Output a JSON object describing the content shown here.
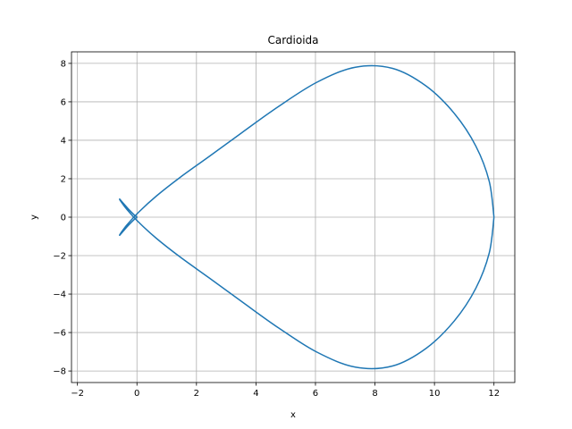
{
  "chart_data": {
    "type": "line",
    "title": "Cardioida",
    "xlabel": "x",
    "ylabel": "y",
    "xlim": [
      -2.2,
      12.7
    ],
    "ylim": [
      -8.6,
      8.6
    ],
    "x_ticks": [
      -2,
      0,
      2,
      4,
      6,
      8,
      10,
      12
    ],
    "y_ticks": [
      -8,
      -6,
      -4,
      -2,
      0,
      2,
      4,
      6,
      8
    ],
    "x_tick_labels": [
      "−2",
      "0",
      "2",
      "4",
      "6",
      "8",
      "10",
      "12"
    ],
    "y_tick_labels": [
      "−8",
      "−6",
      "−4",
      "−2",
      "0",
      "2",
      "4",
      "6",
      "8"
    ],
    "grid": true,
    "series": [
      {
        "color": "#1f77b4",
        "x": [
          12.0,
          11.84,
          11.39,
          10.67,
          9.72,
          8.59,
          7.34,
          6.05,
          4.76,
          3.53,
          2.42,
          1.45,
          0.66,
          0.07,
          -0.33,
          -0.54,
          -0.58,
          -0.48,
          -0.28,
          -0.08,
          0.0,
          -0.08,
          -0.28,
          -0.48,
          -0.58,
          -0.54,
          -0.33,
          0.07,
          0.66,
          1.45,
          2.42,
          3.53,
          4.76,
          6.05,
          7.34,
          8.59,
          9.72,
          10.67,
          11.39,
          11.84,
          12.0
        ],
        "y": [
          0.0,
          1.87,
          3.7,
          5.39,
          6.82,
          7.74,
          7.8,
          7.02,
          5.76,
          4.4,
          3.15,
          2.07,
          1.11,
          0.28,
          -0.39,
          -0.82,
          -0.94,
          -0.76,
          -0.41,
          -0.1,
          0.0,
          0.1,
          0.41,
          0.76,
          0.94,
          0.82,
          0.39,
          -0.28,
          -1.11,
          -2.07,
          -3.15,
          -4.4,
          -5.76,
          -7.02,
          -7.8,
          -7.74,
          -6.82,
          -5.39,
          -3.7,
          -1.87,
          0.0
        ]
      }
    ]
  }
}
